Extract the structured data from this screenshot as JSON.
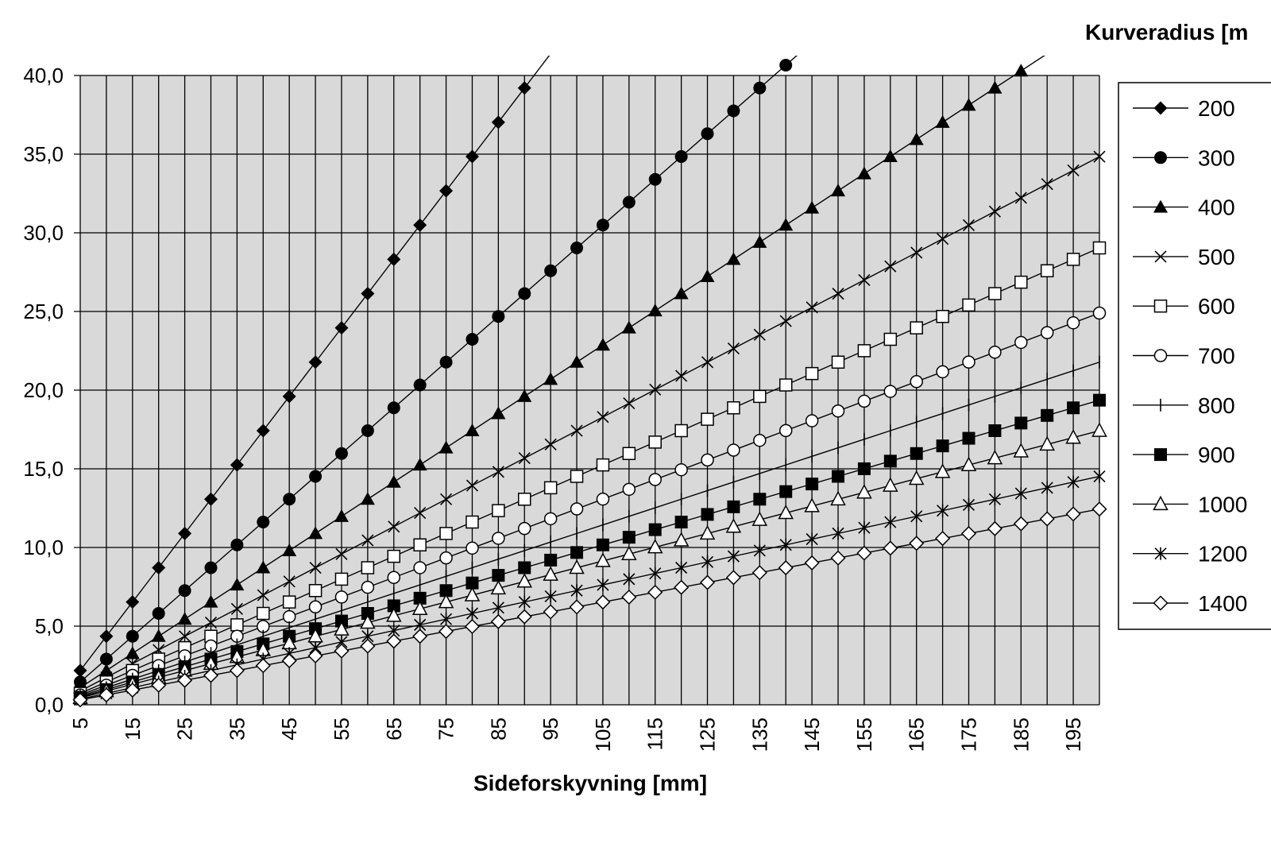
{
  "chart_data": {
    "type": "line",
    "xlabel": "Sideforskyvning [mm]",
    "ylabel": "",
    "legend_title": "Kurveradius [m",
    "legend_position": "right",
    "grid": true,
    "plot_background": "#d9d9d9",
    "line_color": "#000000",
    "x": [
      5,
      10,
      15,
      20,
      25,
      30,
      35,
      40,
      45,
      50,
      55,
      60,
      65,
      70,
      75,
      80,
      85,
      90,
      95,
      100,
      105,
      110,
      115,
      120,
      125,
      130,
      135,
      140,
      145,
      150,
      155,
      160,
      165,
      170,
      175,
      180,
      185,
      190,
      195,
      200
    ],
    "xlim": [
      5,
      200
    ],
    "x_tick_labels": [
      "5",
      "15",
      "25",
      "35",
      "45",
      "55",
      "65",
      "75",
      "85",
      "95",
      "105",
      "115",
      "125",
      "135",
      "145",
      "155",
      "165",
      "175",
      "185",
      "195"
    ],
    "x_tick_values": [
      5,
      15,
      25,
      35,
      45,
      55,
      65,
      75,
      85,
      95,
      105,
      115,
      125,
      135,
      145,
      155,
      165,
      175,
      185,
      195
    ],
    "ylim": [
      0,
      40
    ],
    "y_tick_labels": [
      "0,0",
      "5,0",
      "10,0",
      "15,0",
      "20,0",
      "25,0",
      "30,0",
      "35,0",
      "40,0"
    ],
    "y_tick_values": [
      0,
      5,
      10,
      15,
      20,
      25,
      30,
      35,
      40
    ],
    "series": [
      {
        "name": "200",
        "marker": "diamond-filled",
        "slope": 0.4356
      },
      {
        "name": "300",
        "marker": "circle-filled",
        "slope": 0.2904
      },
      {
        "name": "400",
        "marker": "triangle-filled",
        "slope": 0.2178
      },
      {
        "name": "500",
        "marker": "x",
        "slope": 0.1742
      },
      {
        "name": "600",
        "marker": "square-open",
        "slope": 0.1452
      },
      {
        "name": "700",
        "marker": "circle-open",
        "slope": 0.1245
      },
      {
        "name": "800",
        "marker": "plus",
        "slope": 0.1089
      },
      {
        "name": "900",
        "marker": "square-filled",
        "slope": 0.0968
      },
      {
        "name": "1000",
        "marker": "triangle-open",
        "slope": 0.0871
      },
      {
        "name": "1200",
        "marker": "asterisk",
        "slope": 0.0726
      },
      {
        "name": "1400",
        "marker": "diamond-open",
        "slope": 0.0622
      }
    ]
  }
}
